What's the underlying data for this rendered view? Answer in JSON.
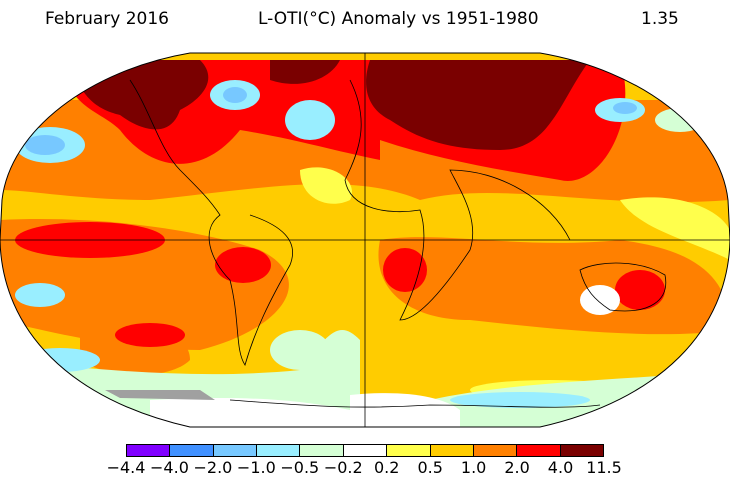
{
  "header": {
    "date": "February 2016",
    "title": "L-OTI(°C) Anomaly vs 1951-1980",
    "global_mean": "1.35"
  },
  "colorbar": {
    "ticks": [
      "−4.4",
      "−4.0",
      "−2.0",
      "−1.0",
      "−0.5",
      "−0.2",
      "0.2",
      "0.5",
      "1.0",
      "2.0",
      "4.0",
      "11.5"
    ],
    "colors": [
      "#8000ff",
      "#4090ff",
      "#77c8ff",
      "#99eeff",
      "#d5ffd5",
      "#ffffff",
      "#ffff4c",
      "#ffcc00",
      "#ff8000",
      "#ff0000",
      "#7a0000"
    ]
  },
  "map": {
    "projection": "Robinson",
    "missing_data_color": "#a0a0a0"
  }
}
